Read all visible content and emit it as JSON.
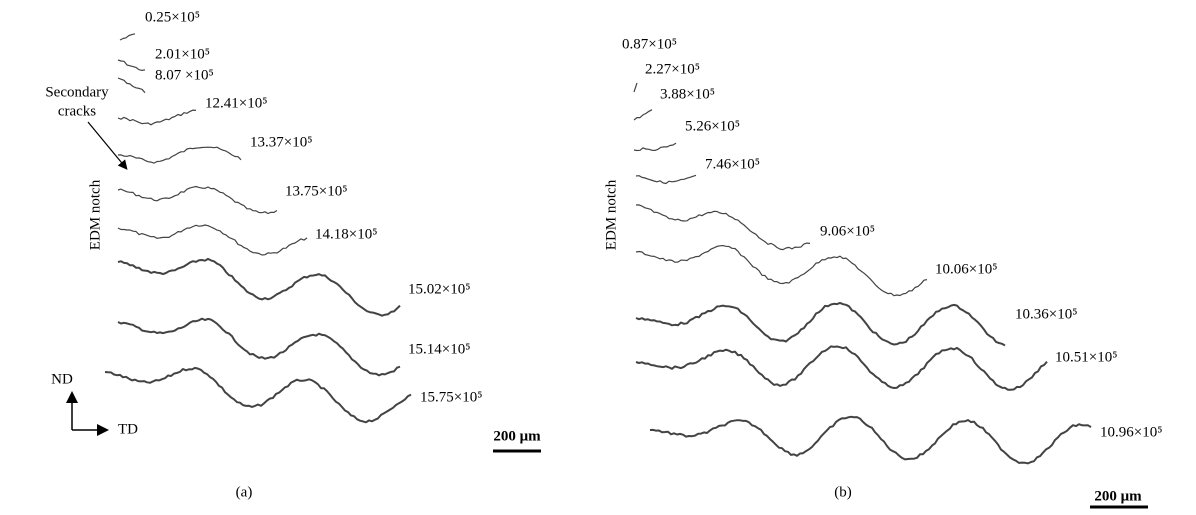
{
  "panel_a": {
    "caption": "(a)",
    "side_label": "EDM notch",
    "annotation": [
      "Secondary",
      "cracks"
    ],
    "axes": {
      "vertical": "ND",
      "horizontal": "TD"
    },
    "scale_bar": "200 μm",
    "crack_labels": [
      "0.25×10⁵",
      "2.01×10⁵",
      "8.07 ×10⁵",
      "12.41×10⁵",
      "13.37×10⁵",
      "13.75×10⁵",
      "14.18×10⁵",
      "15.02×10⁵",
      "15.14×10⁵",
      "15.75×10⁵"
    ]
  },
  "panel_b": {
    "caption": "(b)",
    "side_label": "EDM notch",
    "scale_bar": "200 μm",
    "crack_labels": [
      "0.87×10⁵",
      "2.27×10⁵",
      "3.88×10⁵",
      "5.26×10⁵",
      "7.46×10⁵",
      "9.06×10⁵",
      "10.06×10⁵",
      "10.36×10⁵",
      "10.51×10⁵",
      "10.96×10⁵"
    ]
  }
}
